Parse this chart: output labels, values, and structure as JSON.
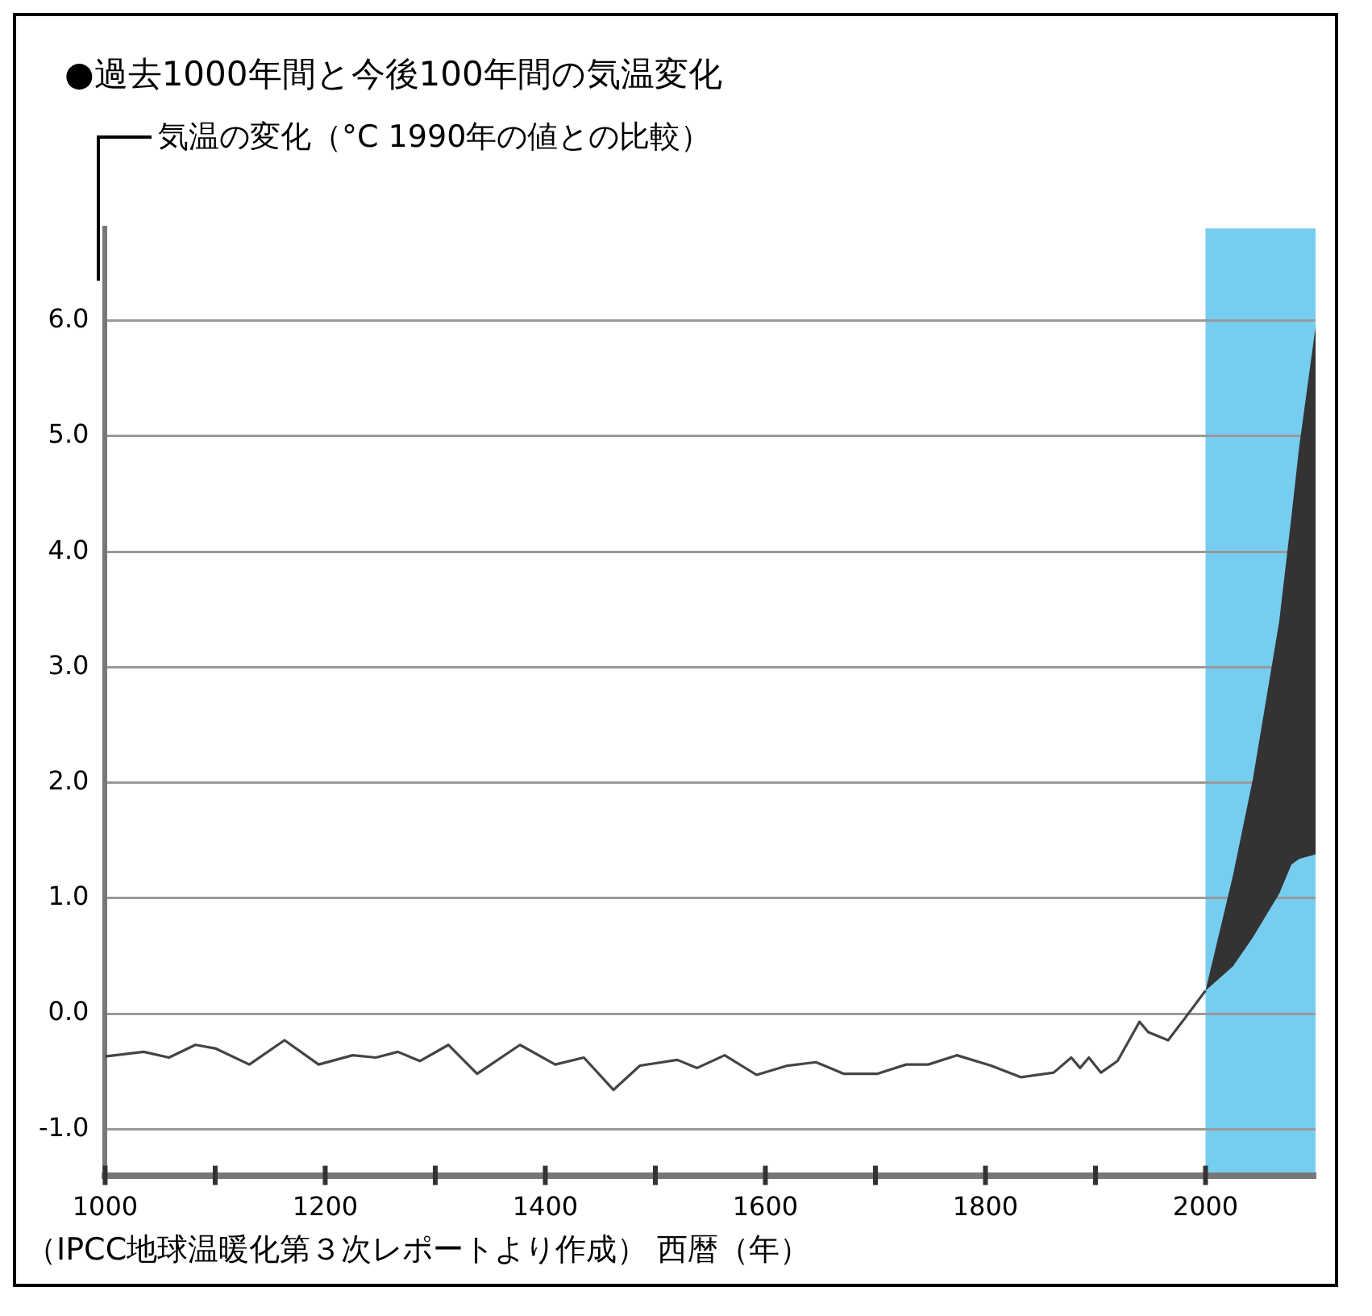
{
  "chart_data": {
    "type": "line",
    "title": "●過去1000年間と今後100年間の気温変化",
    "ylabel": "気温の変化（°C 1990年の値との比較）",
    "xlabel": "西暦（年）",
    "annotations": [
      "（IPCC地球温暖化第３次レポートより作成）"
    ],
    "series": [
      {
        "type": "line",
        "color": "#444444",
        "x": [
          1000,
          1035,
          1058,
          1082,
          1100,
          1131,
          1163,
          1194,
          1225,
          1246,
          1266,
          1286,
          1312,
          1338,
          1377,
          1409,
          1435,
          1462,
          1486,
          1520,
          1538,
          1563,
          1592,
          1620,
          1646,
          1671,
          1702,
          1728,
          1748,
          1774,
          1805,
          1832,
          1862,
          1878,
          1886,
          1894,
          1905,
          1920,
          1940,
          1948,
          1966,
          1982,
          2000
        ],
        "values": [
          -0.37,
          -0.33,
          -0.38,
          -0.27,
          -0.3,
          -0.44,
          -0.23,
          -0.44,
          -0.36,
          -0.38,
          -0.33,
          -0.41,
          -0.27,
          -0.52,
          -0.27,
          -0.44,
          -0.38,
          -0.66,
          -0.45,
          -0.4,
          -0.47,
          -0.36,
          -0.53,
          -0.45,
          -0.42,
          -0.52,
          -0.52,
          -0.44,
          -0.44,
          -0.36,
          -0.45,
          -0.55,
          -0.51,
          -0.38,
          -0.47,
          -0.38,
          -0.51,
          -0.41,
          -0.07,
          -0.16,
          -0.23,
          -0.03,
          0.2
        ]
      },
      {
        "type": "line",
        "color": "#333333",
        "x": [
          2000,
          2025,
          2043,
          2067,
          2078,
          2085,
          2100
        ],
        "values": [
          null,
          null,
          null,
          null,
          null,
          null,
          null
        ],
        "lower": [
          0.2,
          0.41,
          0.66,
          1.04,
          1.29,
          1.34,
          1.38
        ],
        "upper": [
          0.2,
          1.2,
          2.03,
          3.4,
          4.3,
          4.9,
          5.95
        ]
      }
    ],
    "xlim": [
      1000,
      2100
    ],
    "xticks": [
      1000,
      {
        "value": 1100,
        "label": null
      },
      1200,
      {
        "value": 1300,
        "label": null
      },
      1400,
      {
        "value": 1500,
        "label": null
      },
      1600,
      {
        "value": 1700,
        "label": null
      },
      1800,
      {
        "value": 1900,
        "label": null
      },
      2000
    ],
    "ylim": [
      -1.4,
      6.8
    ],
    "yticks": [
      {
        "value": -1,
        "label": "-1.0"
      },
      {
        "value": 0,
        "label": "0.0"
      },
      {
        "value": 1,
        "label": "1.0"
      },
      {
        "value": 2,
        "label": "2.0"
      },
      {
        "value": 3,
        "label": "3.0"
      },
      {
        "value": 4,
        "label": "4.0"
      },
      {
        "value": 5,
        "label": "5.0"
      },
      {
        "value": 6,
        "label": "6.0"
      }
    ],
    "bands": [
      {
        "axis": "x",
        "from": 2000,
        "to": 2100,
        "color": "#77cdf0"
      }
    ],
    "grid": "y",
    "legend": false,
    "marker": "none",
    "line_style": "solid"
  }
}
